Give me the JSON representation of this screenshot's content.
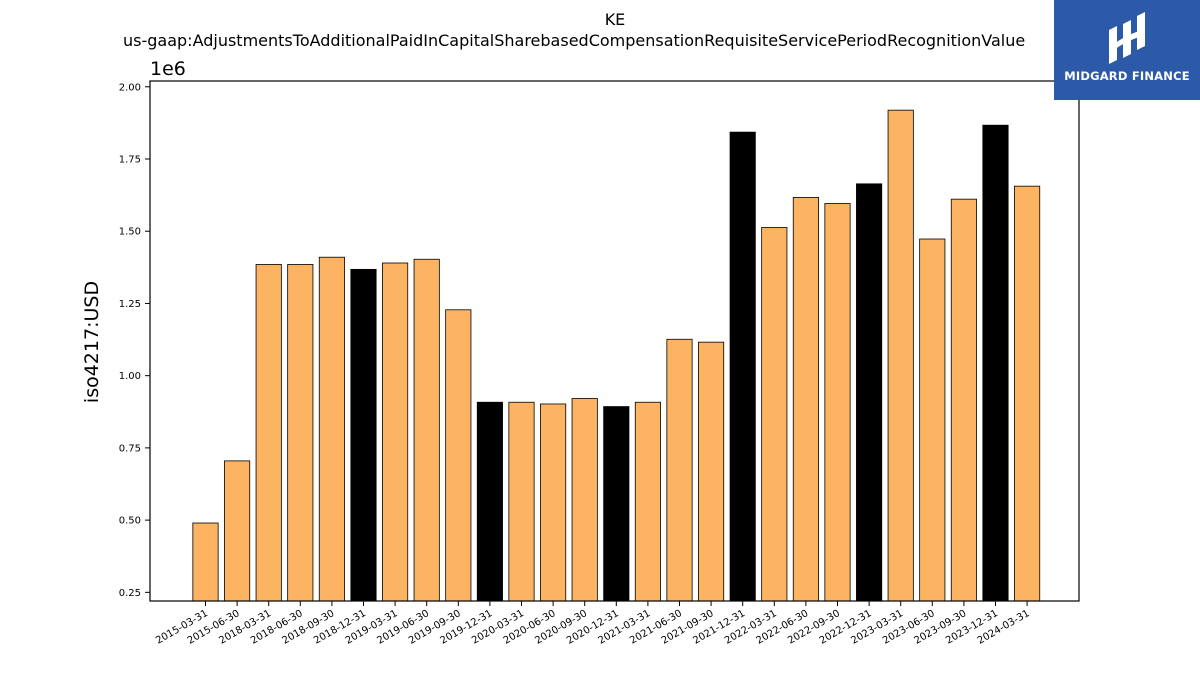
{
  "chart_data": {
    "type": "bar",
    "title": "KE",
    "subtitle": "us-gaap:AdjustmentsToAdditionalPaidInCapitalSharebasedCompensationRequisiteServicePeriodRecognitionValue",
    "xlabel": "",
    "ylabel": "iso4217:USD",
    "y_offset_label": "1e6",
    "ylim": [
      0.22,
      2.02
    ],
    "yticks": [
      "0.25",
      "0.50",
      "0.75",
      "1.00",
      "1.25",
      "1.50",
      "1.75",
      "2.00"
    ],
    "grid": false,
    "colors": {
      "default": "#fdb462",
      "highlight": "#000000",
      "edge": "#000000"
    },
    "categories": [
      "2015-03-31",
      "2015-06-30",
      "2018-03-31",
      "2018-06-30",
      "2018-09-30",
      "2018-12-31",
      "2019-03-31",
      "2019-06-30",
      "2019-09-30",
      "2019-12-31",
      "2020-03-31",
      "2020-06-30",
      "2020-09-30",
      "2020-12-31",
      "2021-03-31",
      "2021-06-30",
      "2021-09-30",
      "2021-12-31",
      "2022-03-31",
      "2022-06-30",
      "2022-09-30",
      "2022-12-31",
      "2023-03-31",
      "2023-06-30",
      "2023-09-30",
      "2023-12-31",
      "2024-03-31"
    ],
    "values": [
      0.49,
      0.705,
      1.385,
      1.385,
      1.41,
      1.368,
      1.39,
      1.403,
      1.228,
      0.908,
      0.908,
      0.902,
      0.921,
      0.893,
      0.908,
      1.126,
      1.116,
      1.843,
      1.513,
      1.617,
      1.596,
      1.664,
      1.919,
      1.473,
      1.611,
      1.867,
      1.656
    ],
    "highlighted": [
      false,
      false,
      false,
      false,
      false,
      true,
      false,
      false,
      false,
      true,
      false,
      false,
      false,
      true,
      false,
      false,
      false,
      true,
      false,
      false,
      false,
      true,
      false,
      false,
      false,
      true,
      false
    ]
  },
  "logo": {
    "text": "MIDGARD FINANCE",
    "icon": "midgard-logo-icon",
    "background": "#2c5aa8"
  }
}
